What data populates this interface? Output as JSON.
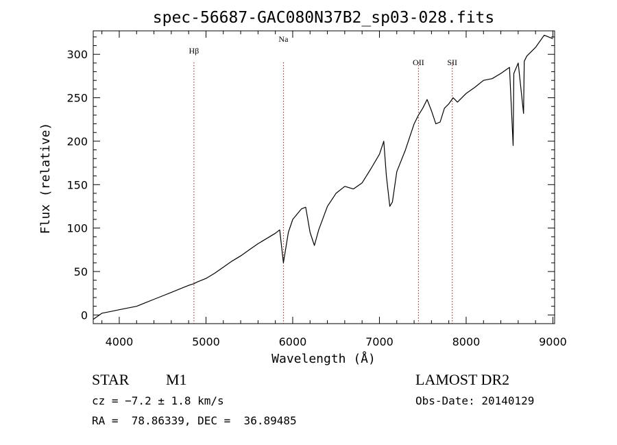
{
  "chart_data": {
    "type": "line",
    "title": "spec-56687-GAC080N37B2_sp03-028.fits",
    "xlabel": "Wavelength (Å)",
    "ylabel": "Flux (relative)",
    "xlim": [
      3700,
      9020
    ],
    "ylim": [
      -10,
      327
    ],
    "x_ticks": [
      4000,
      5000,
      6000,
      7000,
      8000,
      9000
    ],
    "y_ticks": [
      0,
      50,
      100,
      150,
      200,
      250,
      300
    ],
    "grid": false,
    "line_color": "#000000",
    "marker_color": "#8b1a1a",
    "lines": [
      {
        "label": "Hβ",
        "x": 4861
      },
      {
        "label": "Na",
        "x": 5893
      },
      {
        "label": "OII",
        "x": 7450
      },
      {
        "label": "SII",
        "x": 7840
      }
    ],
    "series": [
      {
        "x": [
          3700,
          3800,
          3900,
          4000,
          4100,
          4200,
          4300,
          4400,
          4500,
          4600,
          4700,
          4800,
          4861,
          4900,
          5000,
          5100,
          5200,
          5300,
          5400,
          5500,
          5600,
          5700,
          5800,
          5850,
          5893,
          5950,
          6000,
          6100,
          6150,
          6200,
          6250,
          6300,
          6400,
          6500,
          6600,
          6700,
          6800,
          6900,
          7000,
          7050,
          7080,
          7120,
          7150,
          7200,
          7300,
          7400,
          7450,
          7500,
          7550,
          7600,
          7650,
          7700,
          7750,
          7800,
          7850,
          7900,
          8000,
          8100,
          8200,
          8300,
          8400,
          8500,
          8542,
          8550,
          8600,
          8662,
          8670,
          8700,
          8800,
          8900,
          9000
        ],
        "y": [
          -5,
          2,
          4,
          6,
          8,
          10,
          14,
          18,
          22,
          26,
          30,
          34,
          36,
          38,
          42,
          48,
          55,
          62,
          68,
          75,
          82,
          88,
          94,
          98,
          60,
          95,
          110,
          122,
          124,
          95,
          80,
          98,
          125,
          140,
          148,
          145,
          152,
          168,
          185,
          200,
          160,
          125,
          130,
          165,
          190,
          220,
          230,
          238,
          248,
          235,
          220,
          222,
          238,
          243,
          250,
          245,
          255,
          262,
          270,
          272,
          278,
          285,
          195,
          278,
          290,
          232,
          292,
          298,
          308,
          322,
          318
        ]
      }
    ],
    "annotations": {
      "star": "STAR",
      "subclass": "M1",
      "cz": "cz = −7.2 ± 1.8 km/s",
      "radec": "RA =  78.86339, DEC =  36.89485",
      "survey": "LAMOST DR2",
      "obsdate": "Obs-Date: 20140129"
    }
  }
}
